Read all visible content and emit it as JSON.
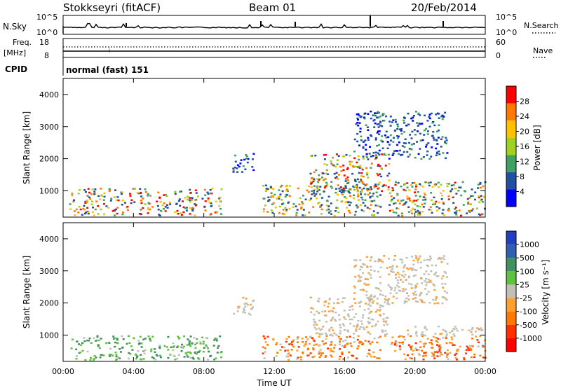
{
  "header": {
    "station": "Stokkseyri (fitACF)",
    "beam": "Beam 01",
    "date": "20/Feb/2014"
  },
  "top_panels": {
    "nsky": {
      "label": "N.Sky",
      "left_ticks": [
        "10^5",
        "10^0"
      ],
      "right_ticks": [
        "10^5",
        "10^0"
      ],
      "right_label": "N.Search"
    },
    "freq": {
      "label_line1": "Freq.",
      "label_line2": "[MHz]",
      "left_ticks": [
        "18",
        "8"
      ],
      "right_ticks": [
        "60",
        "0"
      ],
      "right_label": "Nave"
    },
    "cpid": {
      "label": "CPID",
      "value": "normal (fast) 151"
    }
  },
  "chart_data": [
    {
      "type": "heatmap",
      "panel": "power",
      "ylabel": "Slant Range [km]",
      "ylim": [
        180,
        4500
      ],
      "yticks": [
        1000,
        2000,
        3000,
        4000
      ],
      "xlim": [
        "00:00",
        "24:00"
      ],
      "colorbar": {
        "label": "Power [dB]",
        "ticks": [
          "28",
          "24",
          "20",
          "16",
          "12",
          "8",
          "4"
        ],
        "colors": [
          "#ff0000",
          "#ff7800",
          "#ffc000",
          "#a0d020",
          "#40a060",
          "#2050a0",
          "#0000ff"
        ]
      },
      "regions": [
        {
          "t0": 0.3,
          "t1": 9.0,
          "r0": 250,
          "r1": 1100,
          "level": "high"
        },
        {
          "t0": 9.6,
          "t1": 10.8,
          "r0": 1600,
          "r1": 2200,
          "level": "low"
        },
        {
          "t0": 11.3,
          "t1": 18.0,
          "r0": 250,
          "r1": 1200,
          "level": "medium"
        },
        {
          "t0": 14.0,
          "t1": 18.5,
          "r0": 1000,
          "r1": 2200,
          "level": "high"
        },
        {
          "t0": 16.5,
          "t1": 21.8,
          "r0": 2000,
          "r1": 3500,
          "level": "low"
        },
        {
          "t0": 18.5,
          "t1": 24.0,
          "r0": 250,
          "r1": 1300,
          "level": "high"
        }
      ]
    },
    {
      "type": "heatmap",
      "panel": "velocity",
      "ylabel": "Slant Range [km]",
      "ylim": [
        180,
        4500
      ],
      "yticks": [
        1000,
        2000,
        3000,
        4000
      ],
      "xlim": [
        "00:00",
        "24:00"
      ],
      "xlabel": "Time UT",
      "xticks": [
        "00:00",
        "04:00",
        "08:00",
        "12:00",
        "16:00",
        "20:00",
        "00:00"
      ],
      "colorbar": {
        "label": "Velocity [m s⁻¹]",
        "ticks": [
          "1000",
          "500",
          "100",
          "25",
          "-25",
          "-100",
          "-500",
          "-1000"
        ],
        "colors": [
          "#2040c0",
          "#3060b0",
          "#409060",
          "#60c040",
          "#c0c0b8",
          "#ffa030",
          "#ff7800",
          "#ff3000",
          "#ff0000"
        ]
      },
      "regions": [
        {
          "t0": 0.3,
          "t1": 9.0,
          "r0": 250,
          "r1": 1000,
          "color": "green"
        },
        {
          "t0": 9.6,
          "t1": 10.8,
          "r0": 1600,
          "r1": 2200,
          "color": "grey"
        },
        {
          "t0": 11.3,
          "t1": 18.0,
          "r0": 250,
          "r1": 1000,
          "color": "orange"
        },
        {
          "t0": 14.0,
          "t1": 18.5,
          "r0": 1000,
          "r1": 2200,
          "color": "grey"
        },
        {
          "t0": 16.5,
          "t1": 21.8,
          "r0": 2000,
          "r1": 3500,
          "color": "grey"
        },
        {
          "t0": 18.5,
          "t1": 24.0,
          "r0": 250,
          "r1": 1000,
          "color": "orange"
        },
        {
          "t0": 19.5,
          "t1": 24.0,
          "r0": 1000,
          "r1": 1300,
          "color": "grey"
        }
      ]
    }
  ]
}
